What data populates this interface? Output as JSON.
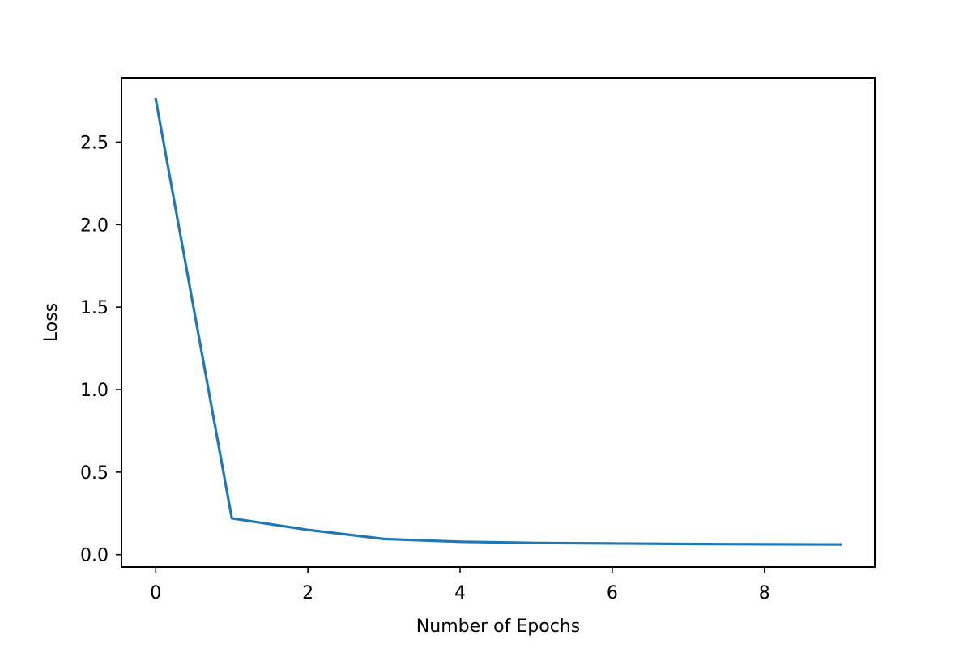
{
  "chart_data": {
    "type": "line",
    "title": "",
    "xlabel": "Number of Epochs",
    "ylabel": "Loss",
    "xlim": [
      -0.45,
      9.45
    ],
    "ylim": [
      -0.075,
      2.89
    ],
    "x_ticks": [
      0,
      2,
      4,
      6,
      8
    ],
    "y_ticks": [
      0.0,
      0.5,
      1.0,
      1.5,
      2.0,
      2.5
    ],
    "x_tick_labels": [
      "0",
      "2",
      "4",
      "6",
      "8"
    ],
    "y_tick_labels": [
      "0.0",
      "0.5",
      "1.0",
      "1.5",
      "2.0",
      "2.5"
    ],
    "grid": false,
    "series": [
      {
        "color": "#1f77b4",
        "x": [
          0,
          1,
          2,
          3,
          4,
          5,
          6,
          7,
          8,
          9
        ],
        "y": [
          2.76,
          0.22,
          0.15,
          0.095,
          0.078,
          0.071,
          0.068,
          0.065,
          0.063,
          0.062
        ]
      }
    ]
  }
}
